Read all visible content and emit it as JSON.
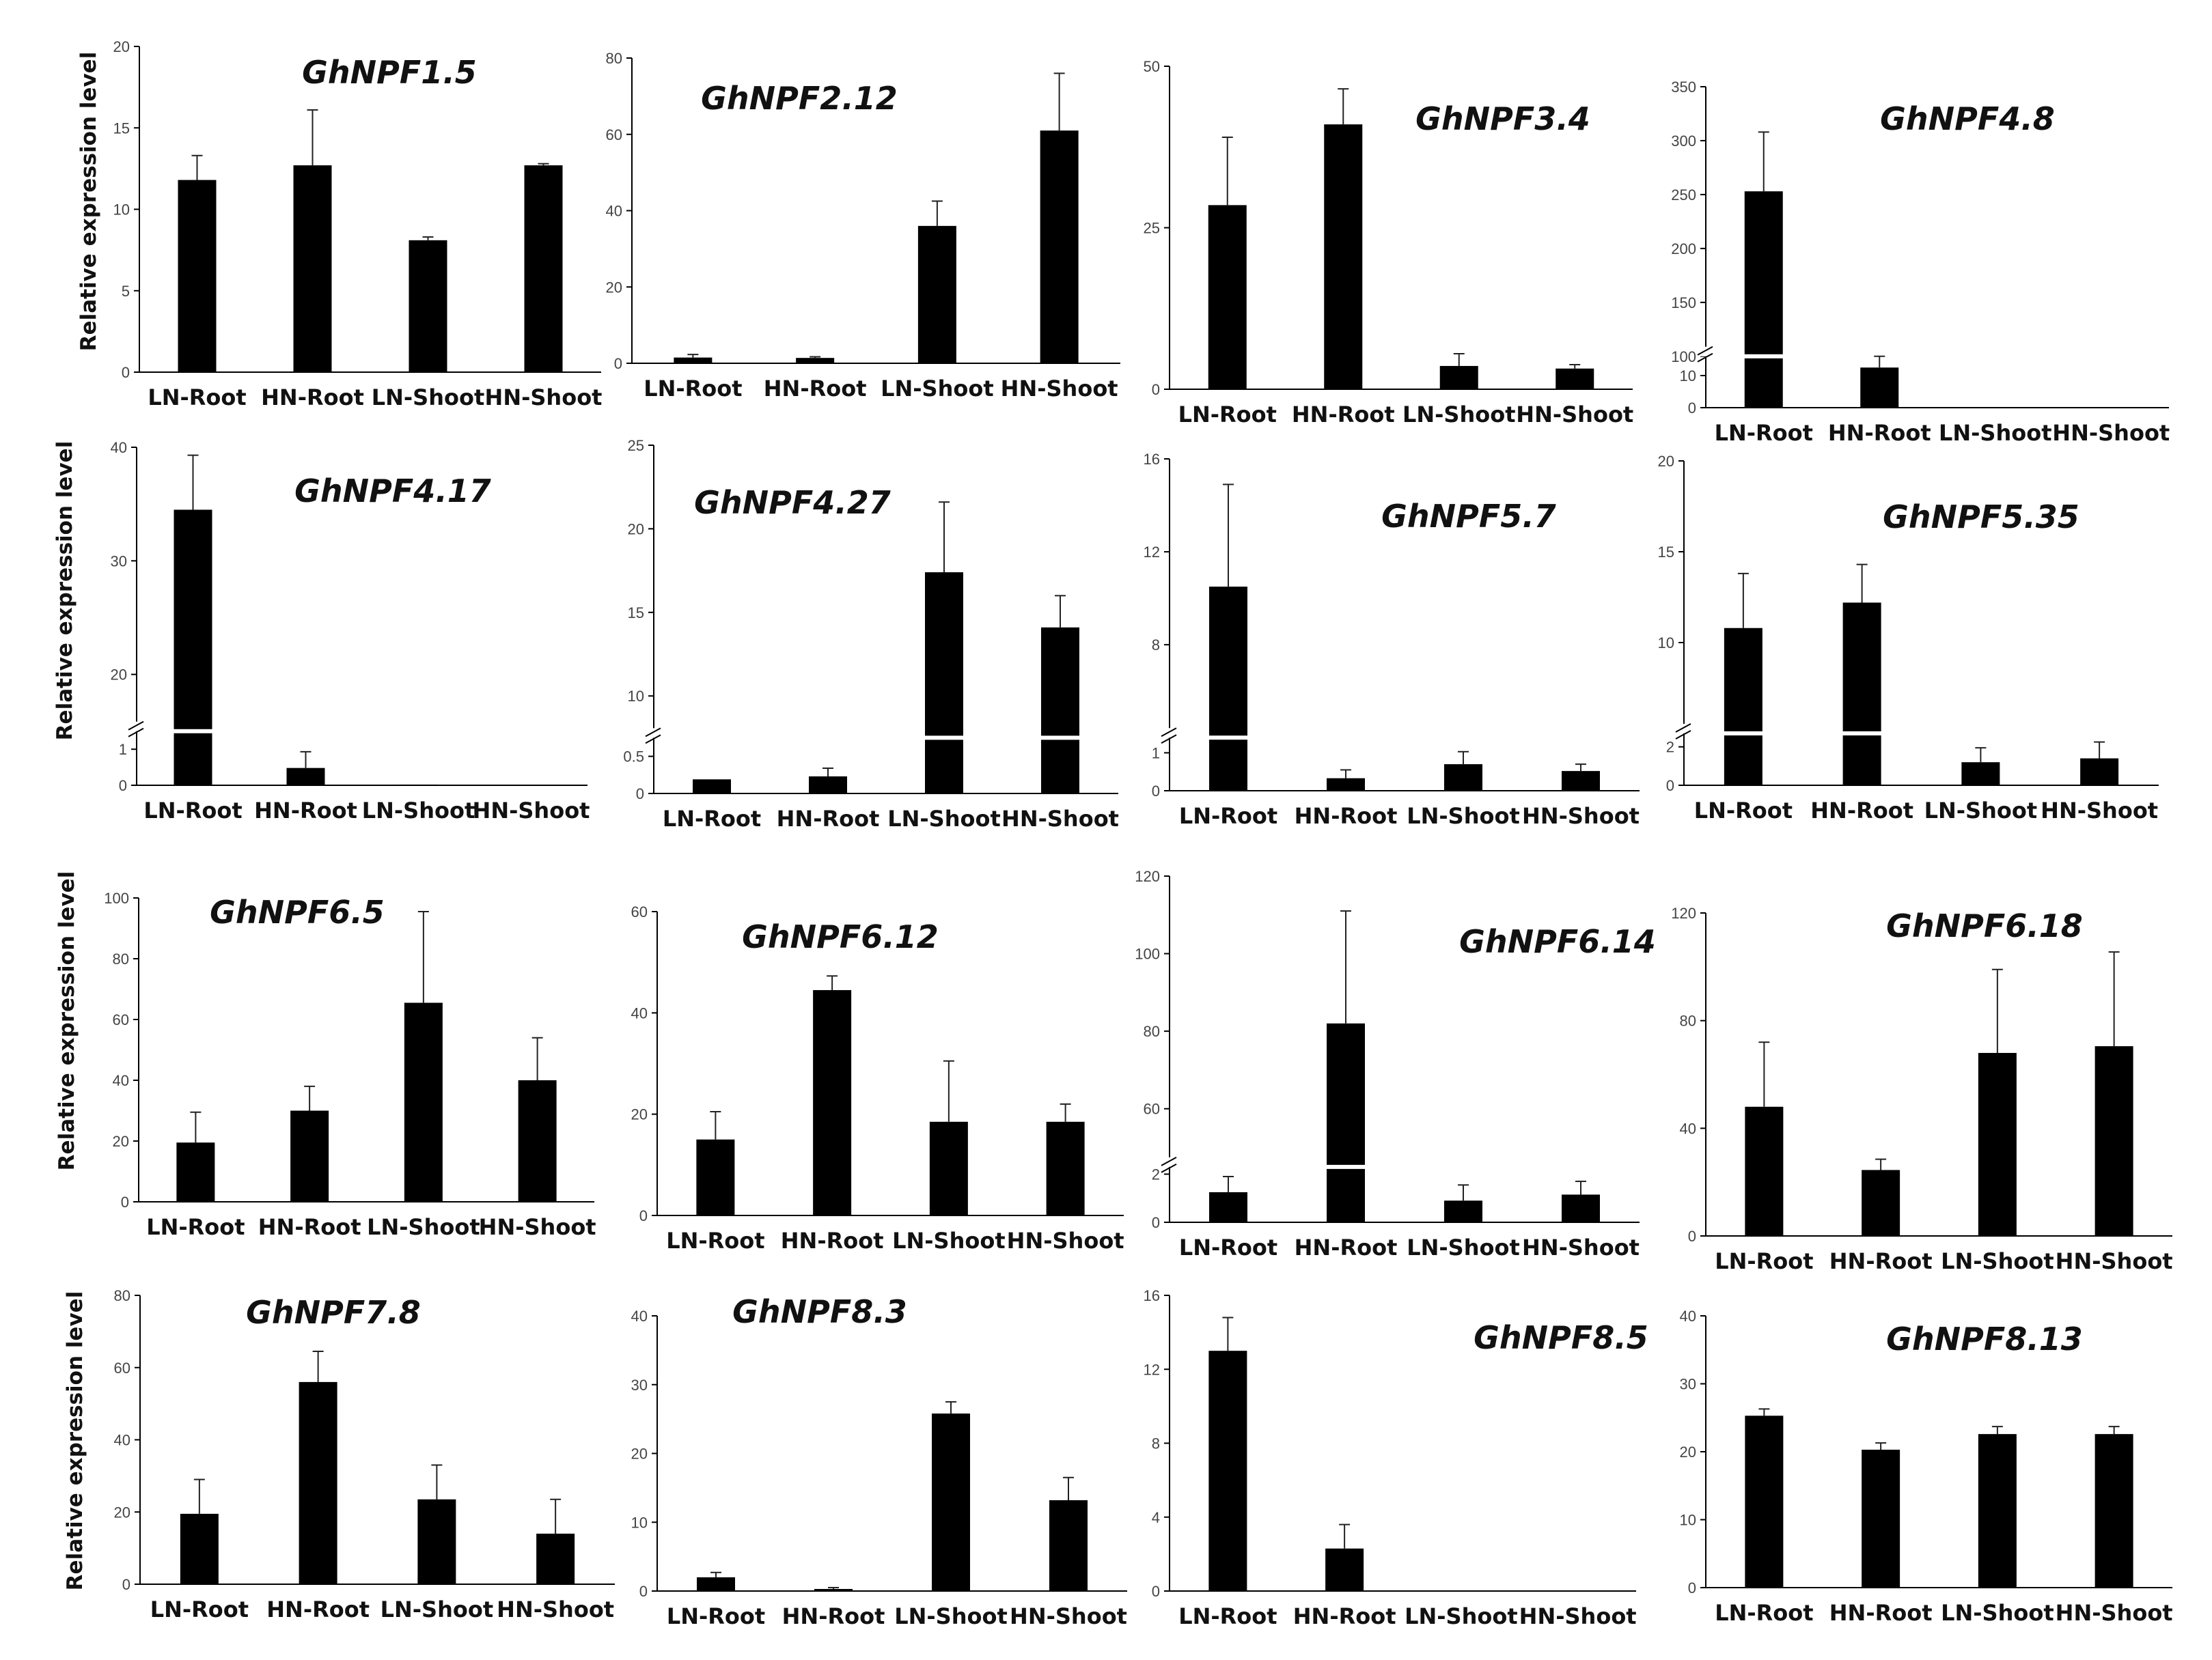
{
  "figure": {
    "ylabel": "Relative expression level",
    "colors": {
      "bar": "#000000",
      "axis": "#000000",
      "background": "#ffffff",
      "tick_text": "#444444",
      "error": "#222222"
    }
  },
  "chart_data": [
    {
      "type": "bar",
      "title": "GhNPF1.5",
      "ylabel": "Relative expression level",
      "categories": [
        "LN-Root",
        "HN-Root",
        "LN-Shoot",
        "HN-Shoot"
      ],
      "values": [
        11.8,
        12.7,
        8.1,
        12.7
      ],
      "errors": [
        1.5,
        3.4,
        0.2,
        0.1
      ],
      "ylim": [
        0,
        20
      ],
      "yticks": [
        "0",
        "5",
        "10",
        "15",
        "20"
      ]
    },
    {
      "type": "bar",
      "title": "GhNPF2.12",
      "ylabel": "",
      "categories": [
        "LN-Root",
        "HN-Root",
        "LN-Shoot",
        "HN-Shoot"
      ],
      "values": [
        1.5,
        1.4,
        36.0,
        61.0
      ],
      "errors": [
        0.8,
        0.3,
        6.5,
        15.0
      ],
      "ylim": [
        0,
        80
      ],
      "yticks": [
        "0",
        "20",
        "40",
        "60",
        "80"
      ]
    },
    {
      "type": "bar",
      "title": "GhNPF3.4",
      "ylabel": "",
      "categories": [
        "LN-Root",
        "HN-Root",
        "LN-Shoot",
        "HN-Shoot"
      ],
      "values": [
        28.5,
        41.0,
        3.6,
        3.2
      ],
      "errors": [
        10.5,
        5.5,
        1.9,
        0.6
      ],
      "ylim": [
        0,
        50
      ],
      "yticks": [
        "0",
        "25",
        "50"
      ]
    },
    {
      "type": "bar",
      "title": "GhNPF4.8",
      "ylabel": "",
      "broken_axis": true,
      "categories": [
        "LN-Root",
        "HN-Root",
        "LN-Shoot",
        "HN-Shoot"
      ],
      "values": [
        253,
        12.5,
        0,
        0
      ],
      "errors": [
        55,
        4.5,
        0,
        0
      ],
      "lower": {
        "range": [
          0,
          16
        ],
        "ticks": [
          "0",
          "10"
        ]
      },
      "upper": {
        "range": [
          100,
          350
        ],
        "ticks": [
          "100",
          "150",
          "200",
          "250",
          "300",
          "350"
        ]
      }
    },
    {
      "type": "bar",
      "title": "GhNPF4.17",
      "ylabel": "Relative expression level",
      "broken_axis": true,
      "categories": [
        "LN-Root",
        "HN-Root",
        "LN-Shoot",
        "HN-Shoot"
      ],
      "values": [
        34.5,
        0.48,
        0.02,
        0
      ],
      "errors": [
        4.8,
        0.45,
        0,
        0
      ],
      "lower": {
        "range": [
          0,
          1.5
        ],
        "ticks": [
          "0",
          "1"
        ]
      },
      "upper": {
        "range": [
          15,
          40
        ],
        "ticks": [
          "20",
          "30",
          "40"
        ]
      }
    },
    {
      "type": "bar",
      "title": "GhNPF4.27",
      "ylabel": "",
      "broken_axis": true,
      "categories": [
        "LN-Root",
        "HN-Root",
        "LN-Shoot",
        "HN-Shoot"
      ],
      "values": [
        0.19,
        0.23,
        17.4,
        14.1
      ],
      "errors": [
        0,
        0.11,
        4.2,
        1.9
      ],
      "lower": {
        "range": [
          0,
          0.75
        ],
        "ticks": [
          "0",
          "0.5"
        ]
      },
      "upper": {
        "range": [
          7.5,
          25
        ],
        "ticks": [
          "10",
          "15",
          "20",
          "25"
        ]
      }
    },
    {
      "type": "bar",
      "title": "GhNPF5.7",
      "ylabel": "",
      "broken_axis": true,
      "categories": [
        "LN-Root",
        "HN-Root",
        "LN-Shoot",
        "HN-Shoot"
      ],
      "values": [
        10.5,
        0.33,
        0.7,
        0.52
      ],
      "errors": [
        4.4,
        0.22,
        0.33,
        0.18
      ],
      "lower": {
        "range": [
          0,
          1.4
        ],
        "ticks": [
          "0",
          "1"
        ]
      },
      "upper": {
        "range": [
          4,
          16
        ],
        "ticks": [
          "8",
          "12",
          "16"
        ]
      }
    },
    {
      "type": "bar",
      "title": "GhNPF5.35",
      "ylabel": "",
      "broken_axis": true,
      "categories": [
        "LN-Root",
        "HN-Root",
        "LN-Shoot",
        "HN-Shoot"
      ],
      "values": [
        10.8,
        12.2,
        1.2,
        1.4
      ],
      "errors": [
        3.0,
        2.1,
        0.75,
        0.85
      ],
      "lower": {
        "range": [
          0,
          2.7
        ],
        "ticks": [
          "0",
          "2"
        ]
      },
      "upper": {
        "range": [
          5,
          20
        ],
        "ticks": [
          "10",
          "15",
          "20"
        ]
      }
    },
    {
      "type": "bar",
      "title": "GhNPF6.5",
      "ylabel": "Relative expression level",
      "categories": [
        "LN-Root",
        "HN-Root",
        "LN-Shoot",
        "HN-Shoot"
      ],
      "values": [
        19.5,
        30.0,
        65.5,
        40.0
      ],
      "errors": [
        10.0,
        8.0,
        30.0,
        14.0
      ],
      "ylim": [
        0,
        100
      ],
      "yticks": [
        "0",
        "20",
        "40",
        "60",
        "80",
        "100"
      ]
    },
    {
      "type": "bar",
      "title": "GhNPF6.12",
      "ylabel": "",
      "categories": [
        "LN-Root",
        "HN-Root",
        "LN-Shoot",
        "HN-Shoot"
      ],
      "values": [
        15.0,
        44.5,
        18.5,
        18.5
      ],
      "errors": [
        5.5,
        2.8,
        12.0,
        3.5
      ],
      "ylim": [
        0,
        60
      ],
      "yticks": [
        "0",
        "20",
        "40",
        "60"
      ]
    },
    {
      "type": "bar",
      "title": "GhNPF6.14",
      "ylabel": "",
      "broken_axis": true,
      "categories": [
        "LN-Root",
        "HN-Root",
        "LN-Shoot",
        "HN-Shoot"
      ],
      "values": [
        1.25,
        82.0,
        0.9,
        1.15
      ],
      "errors": [
        0.65,
        29.0,
        0.65,
        0.55
      ],
      "lower": {
        "range": [
          0,
          2.3
        ],
        "ticks": [
          "0",
          "2"
        ]
      },
      "upper": {
        "range": [
          45,
          120
        ],
        "ticks": [
          "60",
          "80",
          "100",
          "120"
        ]
      }
    },
    {
      "type": "bar",
      "title": "GhNPF6.18",
      "ylabel": "",
      "categories": [
        "LN-Root",
        "HN-Root",
        "LN-Shoot",
        "HN-Shoot"
      ],
      "values": [
        48.0,
        24.5,
        68.0,
        70.5
      ],
      "errors": [
        24.0,
        4.0,
        31.0,
        35.0
      ],
      "ylim": [
        0,
        120
      ],
      "yticks": [
        "0",
        "40",
        "80",
        "120"
      ]
    },
    {
      "type": "bar",
      "title": "GhNPF7.8",
      "ylabel": "Relative expression level",
      "categories": [
        "LN-Root",
        "HN-Root",
        "LN-Shoot",
        "HN-Shoot"
      ],
      "values": [
        19.5,
        56.0,
        23.5,
        14.0
      ],
      "errors": [
        9.5,
        8.5,
        9.5,
        9.5
      ],
      "ylim": [
        0,
        80
      ],
      "yticks": [
        "0",
        "20",
        "40",
        "60",
        "80"
      ]
    },
    {
      "type": "bar",
      "title": "GhNPF8.3",
      "ylabel": "",
      "categories": [
        "LN-Root",
        "HN-Root",
        "LN-Shoot",
        "HN-Shoot"
      ],
      "values": [
        2.0,
        0.3,
        25.8,
        13.2
      ],
      "errors": [
        0.7,
        0.2,
        1.7,
        3.3
      ],
      "ylim": [
        0,
        40
      ],
      "yticks": [
        "0",
        "10",
        "20",
        "30",
        "40"
      ]
    },
    {
      "type": "bar",
      "title": "GhNPF8.5",
      "ylabel": "",
      "categories": [
        "LN-Root",
        "HN-Root",
        "LN-Shoot",
        "HN-Shoot"
      ],
      "values": [
        13.0,
        2.3,
        0,
        0
      ],
      "errors": [
        1.8,
        1.3,
        0,
        0
      ],
      "ylim": [
        0,
        16
      ],
      "yticks": [
        "0",
        "4",
        "8",
        "12",
        "16"
      ]
    },
    {
      "type": "bar",
      "title": "GhNPF8.13",
      "ylabel": "",
      "categories": [
        "LN-Root",
        "HN-Root",
        "LN-Shoot",
        "HN-Shoot"
      ],
      "values": [
        25.3,
        20.3,
        22.6,
        22.6
      ],
      "errors": [
        1.0,
        1.0,
        1.1,
        1.1
      ],
      "ylim": [
        0,
        40
      ],
      "yticks": [
        "0",
        "10",
        "20",
        "30",
        "40"
      ]
    }
  ]
}
